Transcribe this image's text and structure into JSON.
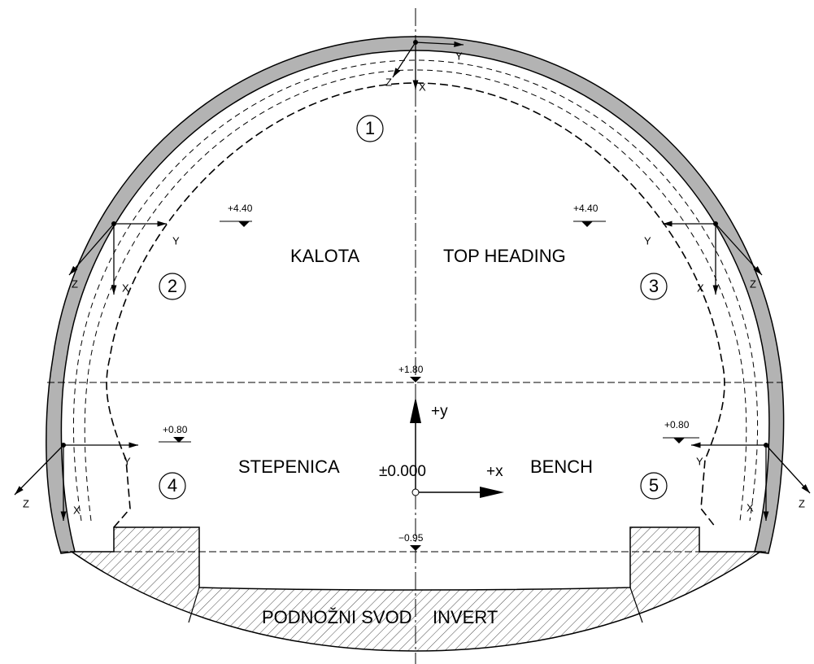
{
  "section_labels": {
    "top_left": "KALOTA",
    "top_right": "TOP HEADING",
    "bench_left": "STEPENICA",
    "bench_right": "BENCH",
    "invert_left": "PODNOŽNI SVOD",
    "invert_right": "INVERT"
  },
  "stage_numbers": [
    "1",
    "2",
    "3",
    "4",
    "5"
  ],
  "elevations": [
    "+4.40",
    "+4.40",
    "+1.80",
    "+0.80",
    "+0.80",
    "−0.95"
  ],
  "origin": {
    "label": "±0.000",
    "y_axis": "+y",
    "x_axis": "+x"
  },
  "local_axes": [
    {
      "y": "Y",
      "x": "X",
      "z": "Z"
    },
    {
      "y": "Y",
      "x": "X",
      "z": "Z"
    },
    {
      "y": "Y",
      "x": "X",
      "z": "Z"
    },
    {
      "y": "Y",
      "x": "X",
      "z": "Z"
    },
    {
      "y": "Y",
      "x": "X",
      "z": "Z"
    }
  ]
}
